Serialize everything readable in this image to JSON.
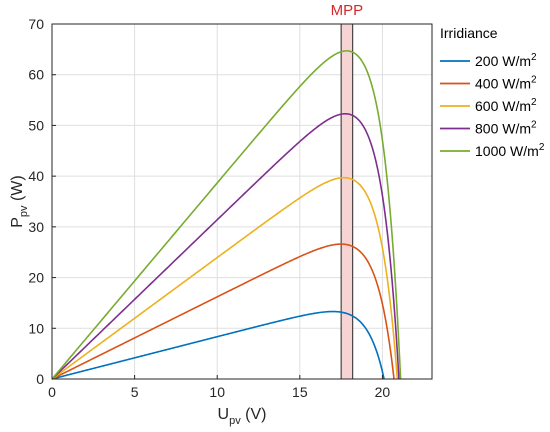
{
  "chart_data": {
    "type": "line",
    "xlabel": {
      "main": "U",
      "sub": "pv",
      "unit": "(V)"
    },
    "ylabel": {
      "main": "P",
      "sub": "pv",
      "unit": "(W)"
    },
    "xlim": [
      0,
      23
    ],
    "ylim": [
      0,
      70
    ],
    "xticks": [
      0,
      5,
      10,
      15,
      20
    ],
    "yticks": [
      0,
      10,
      20,
      30,
      40,
      50,
      60,
      70
    ],
    "grid": true,
    "legend": {
      "title": "Irridiance",
      "placement": "outside-right-top"
    },
    "annotation": {
      "label": "MPP",
      "x_range": [
        17.5,
        18.2
      ],
      "color": "#d62728",
      "fill": "#f6d4d4"
    },
    "series": [
      {
        "name": "200 W/m",
        "sup": "2",
        "color": "#0072BD",
        "vmpp": 17.9,
        "pmax": 13.3,
        "voc": 20.1
      },
      {
        "name": "400 W/m",
        "sup": "2",
        "color": "#D95319",
        "vmpp": 17.9,
        "pmax": 26.6,
        "voc": 20.7
      },
      {
        "name": "600 W/m",
        "sup": "2",
        "color": "#EDB120",
        "vmpp": 17.8,
        "pmax": 39.7,
        "voc": 20.9
      },
      {
        "name": "800 W/m",
        "sup": "2",
        "color": "#7E2F8E",
        "vmpp": 17.7,
        "pmax": 52.3,
        "voc": 21.0
      },
      {
        "name": "1000 W/m",
        "sup": "2",
        "color": "#77AC30",
        "vmpp": 17.6,
        "pmax": 64.7,
        "voc": 21.1
      }
    ]
  }
}
